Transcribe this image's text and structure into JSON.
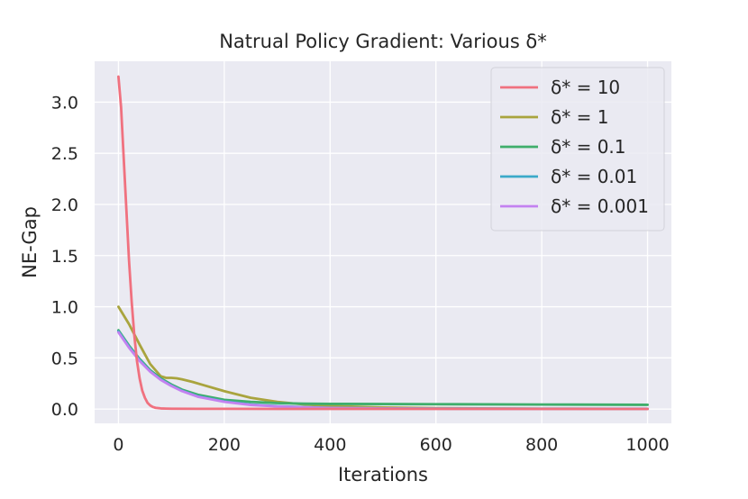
{
  "chart_data": {
    "type": "line",
    "title": "Natrual Policy Gradient: Various δ*",
    "xlabel": "Iterations",
    "ylabel": "NE-Gap",
    "xlim": [
      -45,
      1045
    ],
    "ylim": [
      -0.14,
      3.4
    ],
    "xticks": [
      0,
      200,
      400,
      600,
      800,
      1000
    ],
    "xtick_labels": [
      "0",
      "200",
      "400",
      "600",
      "800",
      "1000"
    ],
    "yticks": [
      0.0,
      0.5,
      1.0,
      1.5,
      2.0,
      2.5,
      3.0
    ],
    "ytick_labels": [
      "0.0",
      "0.5",
      "1.0",
      "1.5",
      "2.0",
      "2.5",
      "3.0"
    ],
    "grid": true,
    "legend_position": "top-right",
    "series": [
      {
        "name": "δ* = 10",
        "color": "#f0717f",
        "x": [
          0,
          5,
          10,
          15,
          20,
          25,
          30,
          35,
          40,
          45,
          50,
          55,
          60,
          65,
          70,
          80,
          90,
          100,
          150,
          200,
          300,
          400,
          600,
          800,
          1000
        ],
        "y": [
          3.25,
          2.95,
          2.45,
          1.95,
          1.45,
          1.05,
          0.72,
          0.47,
          0.3,
          0.18,
          0.11,
          0.06,
          0.035,
          0.02,
          0.012,
          0.006,
          0.004,
          0.003,
          0.002,
          0.002,
          0.001,
          0.001,
          0.001,
          0.001,
          0.001
        ]
      },
      {
        "name": "δ* = 1",
        "color": "#a9a43e",
        "x": [
          0,
          20,
          40,
          60,
          80,
          90,
          100,
          110,
          120,
          140,
          160,
          200,
          250,
          300,
          350,
          400,
          500,
          600,
          800,
          1000
        ],
        "y": [
          1.0,
          0.83,
          0.63,
          0.44,
          0.32,
          0.305,
          0.305,
          0.3,
          0.29,
          0.265,
          0.235,
          0.175,
          0.11,
          0.07,
          0.045,
          0.03,
          0.015,
          0.008,
          0.003,
          0.001
        ]
      },
      {
        "name": "δ* = 0.1",
        "color": "#3fae6b",
        "x": [
          0,
          20,
          40,
          60,
          80,
          100,
          120,
          150,
          200,
          250,
          300,
          350,
          400,
          500,
          600,
          800,
          1000
        ],
        "y": [
          0.77,
          0.62,
          0.49,
          0.38,
          0.3,
          0.24,
          0.19,
          0.14,
          0.09,
          0.07,
          0.058,
          0.052,
          0.05,
          0.049,
          0.047,
          0.044,
          0.041
        ]
      },
      {
        "name": "δ* = 0.01",
        "color": "#3ba9c9",
        "x": [
          0,
          20,
          40,
          60,
          80,
          100,
          120,
          150,
          200,
          250,
          300,
          350,
          400,
          500,
          600,
          800,
          1000
        ],
        "y": [
          0.76,
          0.61,
          0.48,
          0.37,
          0.29,
          0.23,
          0.18,
          0.125,
          0.075,
          0.045,
          0.028,
          0.018,
          0.012,
          0.006,
          0.004,
          0.003,
          0.003
        ]
      },
      {
        "name": "δ* = 0.001",
        "color": "#c382f0",
        "x": [
          0,
          20,
          40,
          60,
          80,
          100,
          120,
          150,
          200,
          250,
          300,
          350,
          400,
          500,
          600,
          800,
          1000
        ],
        "y": [
          0.75,
          0.6,
          0.47,
          0.365,
          0.285,
          0.225,
          0.175,
          0.12,
          0.07,
          0.04,
          0.025,
          0.016,
          0.01,
          0.005,
          0.003,
          0.002,
          0.002
        ]
      }
    ]
  }
}
